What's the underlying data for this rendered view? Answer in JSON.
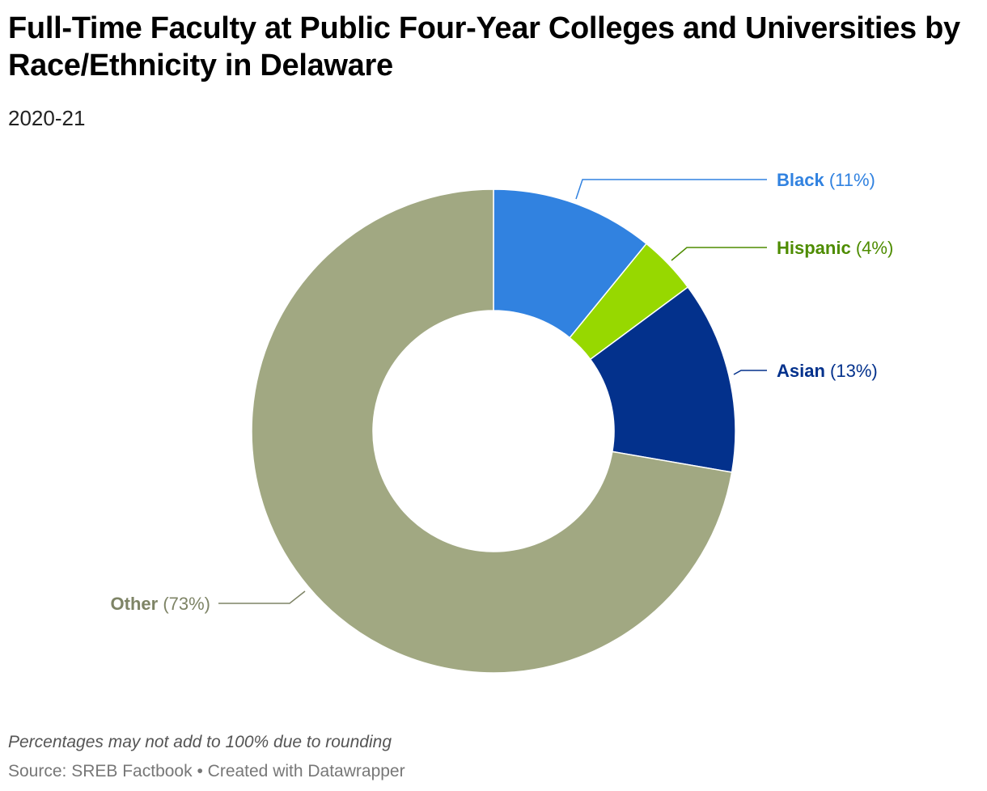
{
  "header": {
    "title": "Full-Time Faculty at Public Four-Year Colleges and Universities by Race/Ethnicity in Delaware",
    "subtitle": "2020-21"
  },
  "footer": {
    "notes": "Percentages may not add to 100% due to rounding",
    "source": "Source: SREB Factbook",
    "separator": "•",
    "credit": "Created with Datawrapper"
  },
  "chart_data": {
    "type": "pie",
    "variant": "donut",
    "title": "Full-Time Faculty at Public Four-Year Colleges and Universities by Race/Ethnicity in Delaware",
    "subtitle": "2020-21",
    "unit": "%",
    "slices": [
      {
        "label": "Black",
        "value": 11,
        "value_label": "(11%)",
        "color": "#3182e0"
      },
      {
        "label": "Hispanic",
        "value": 4,
        "value_label": "(4%)",
        "color": "#97d800"
      },
      {
        "label": "Asian",
        "value": 13,
        "value_label": "(13%)",
        "color": "#03318c"
      },
      {
        "label": "Other",
        "value": 73,
        "value_label": "(73%)",
        "color": "#a1a882"
      }
    ],
    "label_colors": {
      "Black": "#3182e0",
      "Hispanic": "#4e8c00",
      "Asian": "#03318c",
      "Other": "#7e8466"
    },
    "start_angle": "12 o'clock",
    "direction": "clockwise",
    "legend": "none (direct labels)"
  }
}
